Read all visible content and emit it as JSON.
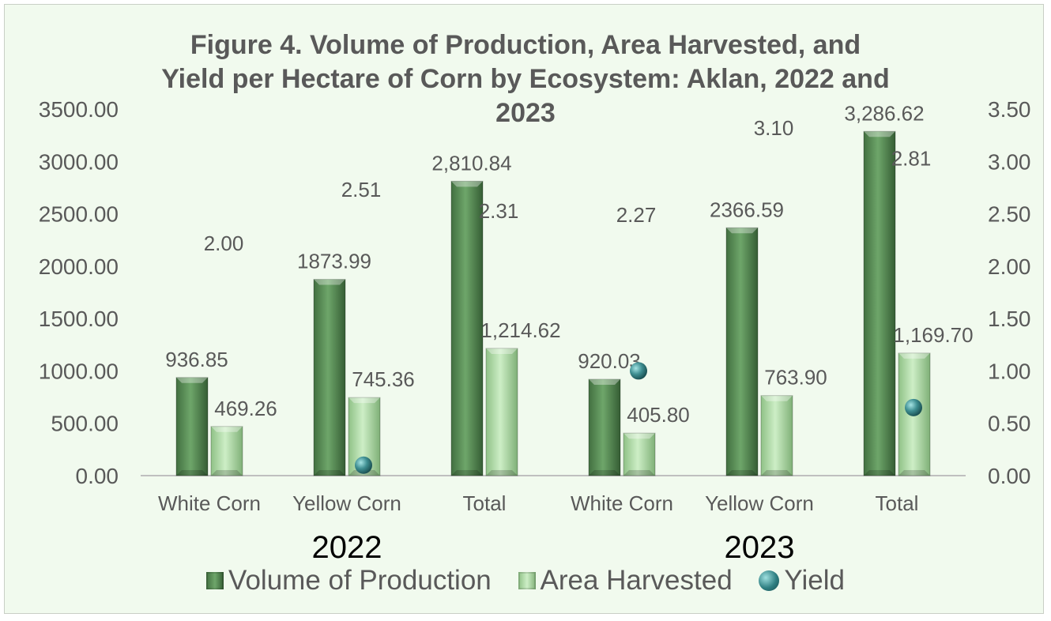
{
  "chart_data": {
    "type": "bar",
    "title_lines": [
      "Figure 4. Volume of Production, Area Harvested, and",
      "Yield per Hectare of Corn by Ecosystem: Aklan, 2022 and",
      "2023"
    ],
    "groups": [
      "2022",
      "2023"
    ],
    "categories": [
      "White Corn",
      "Yellow Corn",
      "Total",
      "White Corn",
      "Yellow Corn",
      "Total"
    ],
    "category_group": [
      0,
      0,
      0,
      1,
      1,
      1
    ],
    "series": [
      {
        "name": "Volume of Production",
        "axis": "left",
        "values": [
          936.85,
          1873.99,
          2810.84,
          920.03,
          2366.59,
          3286.62
        ],
        "labels": [
          "936.85",
          "1873.99",
          "2,810.84",
          "920.03",
          "2366.59",
          "3,286.62"
        ]
      },
      {
        "name": "Area Harvested",
        "axis": "left",
        "values": [
          469.26,
          745.36,
          1214.62,
          405.8,
          763.9,
          1169.7
        ],
        "labels": [
          "469.26",
          "745.36",
          "1,214.62",
          "405.80",
          "763.90",
          "1,169.70"
        ]
      },
      {
        "name": "Yield",
        "axis": "right",
        "values": [
          2.0,
          2.51,
          2.31,
          2.27,
          3.1,
          2.81
        ],
        "labels": [
          "2.00",
          "2.51",
          "2.31",
          "2.27",
          "3.10",
          "2.81"
        ]
      }
    ],
    "yield_markers": [
      {
        "category_index": 1,
        "value": 0.1
      },
      {
        "category_index": 3,
        "value": 1.0
      },
      {
        "category_index": 5,
        "value": 0.65
      }
    ],
    "y_left": {
      "min": 0,
      "max": 3500,
      "step": 500,
      "tick_labels": [
        "0.00",
        "500.00",
        "1000.00",
        "1500.00",
        "2000.00",
        "2500.00",
        "3000.00",
        "3500.00"
      ]
    },
    "y_right": {
      "min": 0,
      "max": 3.5,
      "step": 0.5,
      "tick_labels": [
        "0.00",
        "0.50",
        "1.00",
        "1.50",
        "2.00",
        "2.50",
        "3.00",
        "3.50"
      ]
    },
    "grid": false,
    "legend_position": "bottom",
    "colors": {
      "volume": "#5f9a5c",
      "area": "#b4e0ab",
      "yield": "#3f8f92",
      "text": "#595959",
      "background": "#f1faee"
    }
  }
}
